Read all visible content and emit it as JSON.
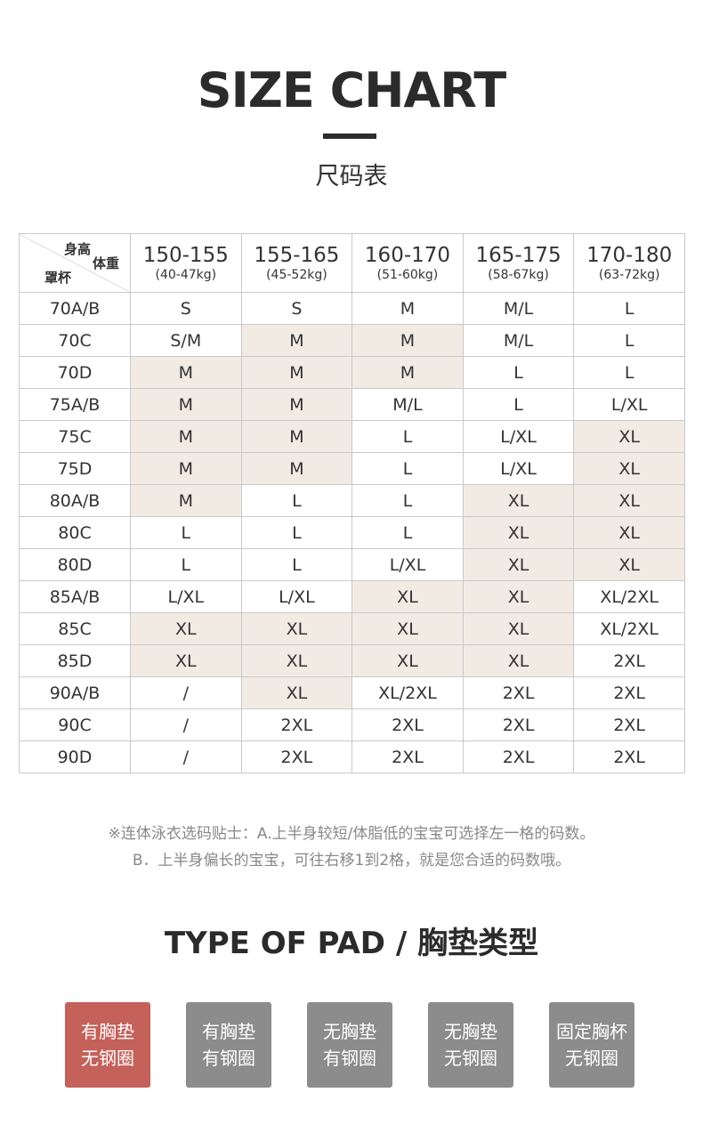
{
  "title": "SIZE CHART",
  "subtitle": "尺码表",
  "table": {
    "corner": {
      "height": "身高",
      "weight": "体重",
      "cup": "罩杯"
    },
    "columns": [
      {
        "height": "150-155",
        "weight": "(40-47kg)"
      },
      {
        "height": "155-165",
        "weight": "(45-52kg)"
      },
      {
        "height": "160-170",
        "weight": "(51-60kg)"
      },
      {
        "height": "165-175",
        "weight": "(58-67kg)"
      },
      {
        "height": "170-180",
        "weight": "(63-72kg)"
      }
    ],
    "highlight_color": "#f2ebe4",
    "rows": [
      {
        "cup": "70A/B",
        "sizes": [
          "S",
          "S",
          "M",
          "M/L",
          "L"
        ],
        "highlighted": []
      },
      {
        "cup": "70C",
        "sizes": [
          "S/M",
          "M",
          "M",
          "M/L",
          "L"
        ],
        "highlighted": [
          1,
          2
        ]
      },
      {
        "cup": "70D",
        "sizes": [
          "M",
          "M",
          "M",
          "L",
          "L"
        ],
        "highlighted": [
          0,
          1,
          2
        ]
      },
      {
        "cup": "75A/B",
        "sizes": [
          "M",
          "M",
          "M/L",
          "L",
          "L/XL"
        ],
        "highlighted": [
          0,
          1
        ]
      },
      {
        "cup": "75C",
        "sizes": [
          "M",
          "M",
          "L",
          "L/XL",
          "XL"
        ],
        "highlighted": [
          0,
          1,
          4
        ]
      },
      {
        "cup": "75D",
        "sizes": [
          "M",
          "M",
          "L",
          "L/XL",
          "XL"
        ],
        "highlighted": [
          0,
          1,
          4
        ]
      },
      {
        "cup": "80A/B",
        "sizes": [
          "M",
          "L",
          "L",
          "XL",
          "XL"
        ],
        "highlighted": [
          0,
          3,
          4
        ]
      },
      {
        "cup": "80C",
        "sizes": [
          "L",
          "L",
          "L",
          "XL",
          "XL"
        ],
        "highlighted": [
          3,
          4
        ]
      },
      {
        "cup": "80D",
        "sizes": [
          "L",
          "L",
          "L/XL",
          "XL",
          "XL"
        ],
        "highlighted": [
          3,
          4
        ]
      },
      {
        "cup": "85A/B",
        "sizes": [
          "L/XL",
          "L/XL",
          "XL",
          "XL",
          "XL/2XL"
        ],
        "highlighted": [
          2,
          3
        ]
      },
      {
        "cup": "85C",
        "sizes": [
          "XL",
          "XL",
          "XL",
          "XL",
          "XL/2XL"
        ],
        "highlighted": [
          0,
          1,
          2,
          3
        ]
      },
      {
        "cup": "85D",
        "sizes": [
          "XL",
          "XL",
          "XL",
          "XL",
          "2XL"
        ],
        "highlighted": [
          0,
          1,
          2,
          3
        ]
      },
      {
        "cup": "90A/B",
        "sizes": [
          "/",
          "XL",
          "XL/2XL",
          "2XL",
          "2XL"
        ],
        "highlighted": [
          1
        ]
      },
      {
        "cup": "90C",
        "sizes": [
          "/",
          "2XL",
          "2XL",
          "2XL",
          "2XL"
        ],
        "highlighted": []
      },
      {
        "cup": "90D",
        "sizes": [
          "/",
          "2XL",
          "2XL",
          "2XL",
          "2XL"
        ],
        "highlighted": []
      }
    ]
  },
  "note": [
    "※连体泳衣选码贴士：A.上半身较短/体脂低的宝宝可选择左一格的码数。",
    "B．上半身偏长的宝宝，可往右移1到2格，就是您合适的码数哦。"
  ],
  "pad_title": "TYPE OF PAD / 胸垫类型",
  "pads": [
    {
      "line1": "有胸垫",
      "line2": "无钢圈",
      "active": true,
      "color": "#c4615a"
    },
    {
      "line1": "有胸垫",
      "line2": "有钢圈",
      "active": false,
      "color": "#8c8c8c"
    },
    {
      "line1": "无胸垫",
      "line2": "有钢圈",
      "active": false,
      "color": "#8c8c8c"
    },
    {
      "line1": "无胸垫",
      "line2": "无钢圈",
      "active": false,
      "color": "#8c8c8c"
    },
    {
      "line1": "固定胸杯",
      "line2": "无钢圈",
      "active": false,
      "color": "#8c8c8c"
    }
  ]
}
